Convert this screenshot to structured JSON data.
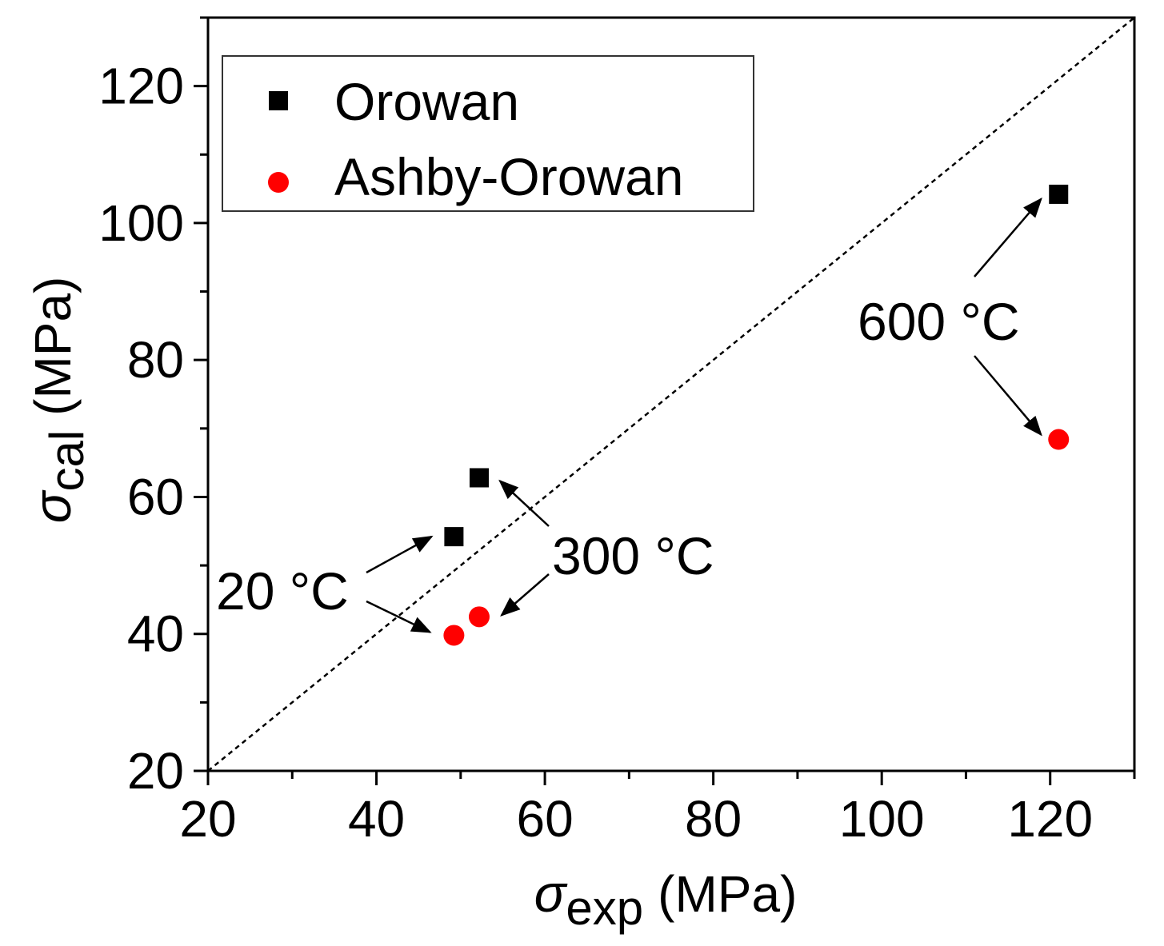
{
  "chart_data": {
    "type": "scatter",
    "title": "",
    "xlabel": {
      "symbol": "σ",
      "subscript": "exp",
      "unit": "(MPa)"
    },
    "ylabel": {
      "symbol": "σ",
      "subscript": "cal",
      "unit": "(MPa)"
    },
    "xlim": [
      20,
      130
    ],
    "ylim": [
      20,
      130
    ],
    "xticks": [
      20,
      40,
      60,
      80,
      100,
      120
    ],
    "yticks": [
      20,
      40,
      60,
      80,
      100,
      120
    ],
    "reference_line": {
      "style": "dashed",
      "from": [
        20,
        20
      ],
      "to": [
        130,
        130
      ]
    },
    "legend_position": "top-left",
    "series": [
      {
        "name": "Orowan",
        "marker": "square",
        "color": "#000000",
        "points": [
          {
            "x": 49.2,
            "y": 54.2
          },
          {
            "x": 52.2,
            "y": 62.8
          },
          {
            "x": 121.0,
            "y": 104.2
          }
        ]
      },
      {
        "name": "Ashby-Orowan",
        "marker": "circle",
        "color": "#ff0000",
        "points": [
          {
            "x": 49.2,
            "y": 39.8
          },
          {
            "x": 52.2,
            "y": 42.5
          },
          {
            "x": 121.0,
            "y": 68.4
          }
        ]
      }
    ],
    "annotations": [
      {
        "text": "20 °C",
        "targets": [
          {
            "x": 49.2,
            "y": 54.2
          },
          {
            "x": 49.2,
            "y": 39.8
          }
        ]
      },
      {
        "text": "300 °C",
        "targets": [
          {
            "x": 52.2,
            "y": 62.8
          },
          {
            "x": 52.2,
            "y": 42.5
          }
        ]
      },
      {
        "text": "600 °C",
        "targets": [
          {
            "x": 121.0,
            "y": 104.2
          },
          {
            "x": 121.0,
            "y": 68.4
          }
        ]
      }
    ]
  }
}
